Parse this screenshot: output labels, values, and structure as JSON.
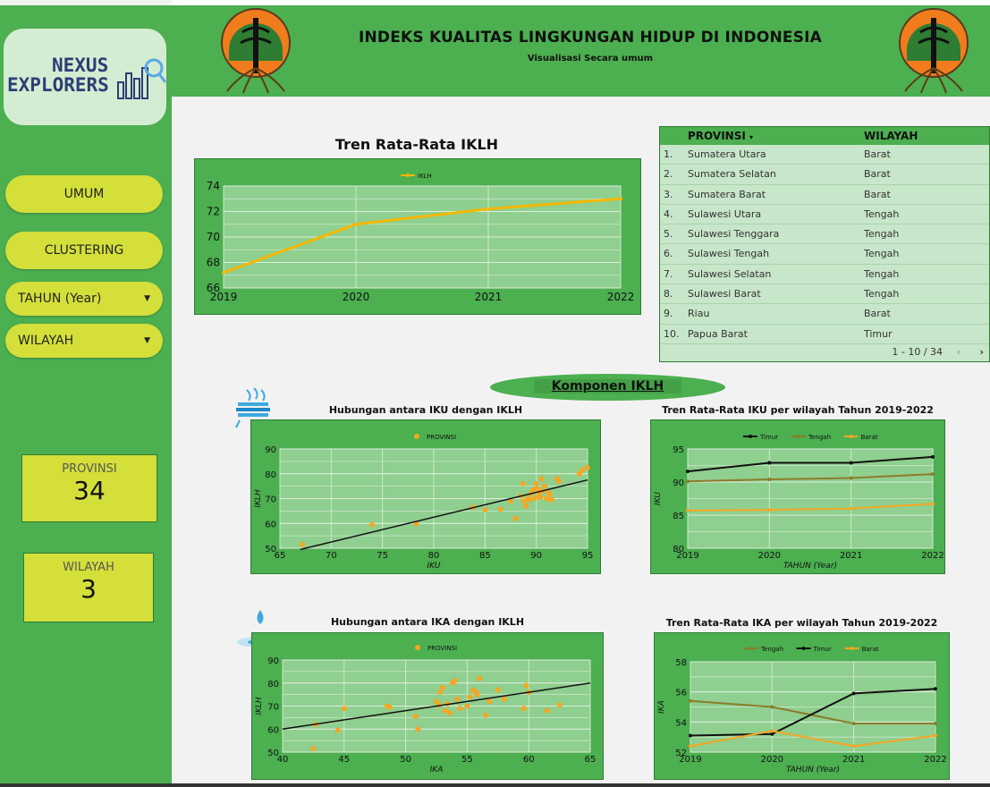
{
  "header": {
    "title": "INDEKS KUALITAS LINGKUNGAN HIDUP DI INDONESIA",
    "subtitle": "Visualisasi Secara umum",
    "emblem_left": "ministry-emblem-icon",
    "emblem_right": "ministry-emblem-icon"
  },
  "brand": {
    "line1": "NEXUS",
    "line2": "EXPLORERS",
    "icon": "bar-chart-magnifier-icon"
  },
  "sidebar": {
    "nav": [
      {
        "label": "UMUM"
      },
      {
        "label": "CLUSTERING"
      }
    ],
    "filters": [
      {
        "label": "TAHUN (Year)",
        "icon": "caret-down-icon"
      },
      {
        "label": "WILAYAH",
        "icon": "caret-down-icon"
      }
    ],
    "kpis": [
      {
        "label": "PROVINSI",
        "value": "34"
      },
      {
        "label": "WILAYAH",
        "value": "3"
      }
    ]
  },
  "table": {
    "headers": [
      "PROVINSI",
      "WILAYAH"
    ],
    "sort_icon": "sort-down-icon",
    "rows": [
      {
        "no": "1.",
        "provinsi": "Sumatera Utara",
        "wilayah": "Barat"
      },
      {
        "no": "2.",
        "provinsi": "Sumatera Selatan",
        "wilayah": "Barat"
      },
      {
        "no": "3.",
        "provinsi": "Sumatera Barat",
        "wilayah": "Barat"
      },
      {
        "no": "4.",
        "provinsi": "Sulawesi Utara",
        "wilayah": "Tengah"
      },
      {
        "no": "5.",
        "provinsi": "Sulawesi Tenggara",
        "wilayah": "Tengah"
      },
      {
        "no": "6.",
        "provinsi": "Sulawesi Tengah",
        "wilayah": "Tengah"
      },
      {
        "no": "7.",
        "provinsi": "Sulawesi Selatan",
        "wilayah": "Tengah"
      },
      {
        "no": "8.",
        "provinsi": "Sulawesi Barat",
        "wilayah": "Tengah"
      },
      {
        "no": "9.",
        "provinsi": "Riau",
        "wilayah": "Barat"
      },
      {
        "no": "10.",
        "provinsi": "Papua Barat",
        "wilayah": "Timur"
      }
    ],
    "pagination": "1 - 10 / 34",
    "prev_icon": "chevron-left-icon",
    "next_icon": "chevron-right-icon"
  },
  "komponen_label": "Komponen IKLH",
  "colors": {
    "green": "#4caf50",
    "lime": "#d4df3a",
    "orange": "#f5a623",
    "black": "#111111",
    "olive": "#8a7d2a"
  },
  "chart_data": [
    {
      "id": "iklh_trend",
      "type": "line",
      "title": "Tren Rata-Rata IKLH",
      "x": [
        "2019",
        "2020",
        "2021",
        "2022"
      ],
      "series": [
        {
          "name": "IKLH",
          "values": [
            67.2,
            71.0,
            72.2,
            73.0
          ],
          "color": "#f5b800"
        }
      ],
      "ylim": [
        66,
        74
      ],
      "yticks": [
        66,
        68,
        70,
        72,
        74
      ],
      "legend": "top-center",
      "grid": true
    },
    {
      "id": "iku_scatter",
      "type": "scatter",
      "title": "Hubungan antara IKU dengan IKLH",
      "xlabel": "IKU",
      "ylabel": "IKLH",
      "series": [
        {
          "name": "PROVINSI",
          "color": "#f5a623",
          "points": [
            [
              67.2,
              51.5
            ],
            [
              74,
              59.5
            ],
            [
              78.3,
              59.8
            ],
            [
              83.8,
              66.5
            ],
            [
              85,
              65.5
            ],
            [
              86.5,
              65.8
            ],
            [
              87.5,
              69
            ],
            [
              88,
              62
            ],
            [
              88.5,
              71
            ],
            [
              88.8,
              69
            ],
            [
              89,
              67
            ],
            [
              89.2,
              70
            ],
            [
              89.5,
              72
            ],
            [
              89.7,
              73.5
            ],
            [
              89.8,
              70
            ],
            [
              90,
              76
            ],
            [
              90.1,
              74
            ],
            [
              90.2,
              71
            ],
            [
              90.3,
              72.5
            ],
            [
              90.5,
              78
            ],
            [
              90.6,
              73
            ],
            [
              90.8,
              75
            ],
            [
              91,
              70
            ],
            [
              91.2,
              72.5
            ],
            [
              91.5,
              69.5
            ],
            [
              92,
              78
            ],
            [
              92.2,
              77
            ],
            [
              94.2,
              80
            ],
            [
              94.5,
              81.5
            ],
            [
              95,
              82.5
            ],
            [
              88.7,
              76
            ],
            [
              89.3,
              69.5
            ],
            [
              90.4,
              70.5
            ],
            [
              91.3,
              71.5
            ]
          ]
        }
      ],
      "trendline": [
        [
          67,
          49.5
        ],
        [
          95,
          77.5
        ]
      ],
      "xlim": [
        65,
        95
      ],
      "ylim": [
        50,
        90
      ],
      "xticks": [
        65,
        70,
        75,
        80,
        85,
        90,
        95
      ],
      "yticks": [
        50,
        60,
        70,
        80,
        90
      ],
      "legend": "top-center"
    },
    {
      "id": "iku_region",
      "type": "line",
      "title": "Tren Rata-Rata IKU per wilayah Tahun 2019-2022",
      "xlabel": "TAHUN (Year)",
      "ylabel": "IKU",
      "x": [
        "2019",
        "2020",
        "2021",
        "2022"
      ],
      "series": [
        {
          "name": "Timur",
          "values": [
            91.6,
            92.9,
            92.9,
            93.8
          ],
          "color": "#111111"
        },
        {
          "name": "Tengah",
          "values": [
            90.1,
            90.4,
            90.6,
            91.2
          ],
          "color": "#8a7d2a"
        },
        {
          "name": "Barat",
          "values": [
            85.7,
            85.8,
            86.0,
            86.7
          ],
          "color": "#f5a623"
        }
      ],
      "ylim": [
        80,
        95
      ],
      "yticks": [
        80,
        85,
        90,
        95
      ],
      "legend": "top-center"
    },
    {
      "id": "ika_scatter",
      "type": "scatter",
      "title": "Hubungan antara IKA dengan IKLH",
      "xlabel": "IKA",
      "ylabel": "IKLH",
      "series": [
        {
          "name": "PROVINSI",
          "color": "#f5a623",
          "points": [
            [
              42.5,
              51.5
            ],
            [
              42.7,
              62
            ],
            [
              44.5,
              59.5
            ],
            [
              45,
              69
            ],
            [
              48.5,
              70
            ],
            [
              48.7,
              69.5
            ],
            [
              50.8,
              65.5
            ],
            [
              51,
              60
            ],
            [
              52.5,
              72
            ],
            [
              52.7,
              70.5
            ],
            [
              52.8,
              76
            ],
            [
              53,
              78
            ],
            [
              53.2,
              68
            ],
            [
              53.4,
              71
            ],
            [
              53.6,
              67
            ],
            [
              53.8,
              80
            ],
            [
              54,
              81
            ],
            [
              54.2,
              73
            ],
            [
              54.4,
              69
            ],
            [
              55,
              70
            ],
            [
              55.2,
              74
            ],
            [
              55.5,
              77
            ],
            [
              55.7,
              76
            ],
            [
              55.8,
              75
            ],
            [
              56,
              82
            ],
            [
              56.5,
              66
            ],
            [
              56.8,
              72
            ],
            [
              57.5,
              77
            ],
            [
              58,
              73
            ],
            [
              59.6,
              69
            ],
            [
              59.8,
              79
            ],
            [
              60,
              76
            ],
            [
              61.5,
              68
            ],
            [
              62.5,
              70.5
            ]
          ]
        }
      ],
      "trendline": [
        [
          40,
          60
        ],
        [
          65,
          80
        ]
      ],
      "xlim": [
        40,
        65
      ],
      "ylim": [
        50,
        90
      ],
      "xticks": [
        40,
        45,
        50,
        55,
        60,
        65
      ],
      "yticks": [
        50,
        60,
        70,
        80,
        90
      ],
      "legend": "top-center"
    },
    {
      "id": "ika_region",
      "type": "line",
      "title": "Tren Rata-Rata IKA per wilayah Tahun 2019-2022",
      "xlabel": "TAHUN (Year)",
      "ylabel": "IKA",
      "x": [
        "2019",
        "2020",
        "2021",
        "2022"
      ],
      "series": [
        {
          "name": "Tengah",
          "values": [
            55.4,
            55.0,
            53.9,
            53.9
          ],
          "color": "#8a7d2a"
        },
        {
          "name": "Timur",
          "values": [
            53.1,
            53.2,
            55.9,
            56.2
          ],
          "color": "#111111"
        },
        {
          "name": "Barat",
          "values": [
            52.4,
            53.4,
            52.4,
            53.1
          ],
          "color": "#f5a623"
        }
      ],
      "ylim": [
        52,
        58
      ],
      "yticks": [
        52,
        54,
        56,
        58
      ],
      "legend": "top-center"
    }
  ]
}
